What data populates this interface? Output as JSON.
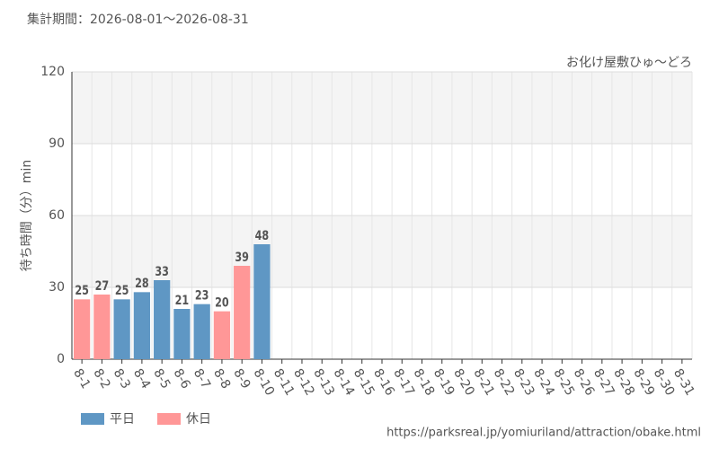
{
  "chart_data": {
    "type": "bar",
    "title": "集計期間：2026-08-01～2026-08-31",
    "subtitle": "お化け屋敷ひゅ～どろ",
    "y_label": "待ち時間（分）min",
    "source": "https://parksreal.jp/yomiuriland/attraction/obake.html",
    "categories": [
      "8-1",
      "8-2",
      "8-3",
      "8-4",
      "8-5",
      "8-6",
      "8-7",
      "8-8",
      "8-9",
      "8-10",
      "8-11",
      "8-12",
      "8-13",
      "8-14",
      "8-15",
      "8-16",
      "8-17",
      "8-18",
      "8-19",
      "8-20",
      "8-21",
      "8-22",
      "8-23",
      "8-24",
      "8-25",
      "8-26",
      "8-27",
      "8-28",
      "8-29",
      "8-30",
      "8-31"
    ],
    "category_label_colors": [
      "#f08080",
      "#f08080",
      "#333333",
      "#333333",
      "#333333",
      "#333333",
      "#333333",
      "#f08080",
      "#f08080",
      "#333333",
      "#f08080",
      "#333333",
      "#333333",
      "#333333",
      "#f08080",
      "#f08080",
      "#333333",
      "#333333",
      "#333333",
      "#333333",
      "#333333",
      "#f08080",
      "#f08080",
      "#333333",
      "#333333",
      "#333333",
      "#333333",
      "#333333",
      "#f08080",
      "#f08080",
      "#333333"
    ],
    "series": [
      {
        "name": "平日",
        "color": "#5f97c4",
        "label_color": "#4a7fb0",
        "values": [
          null,
          null,
          25,
          28,
          33,
          21,
          23,
          null,
          null,
          48,
          null,
          null,
          null,
          null,
          null,
          null,
          null,
          null,
          null,
          null,
          null,
          null,
          null,
          null,
          null,
          null,
          null,
          null,
          null,
          null,
          null
        ]
      },
      {
        "name": "休日",
        "color": "#ff9797",
        "label_color": "#f08080",
        "values": [
          25,
          27,
          null,
          null,
          null,
          null,
          null,
          20,
          39,
          null,
          null,
          null,
          null,
          null,
          null,
          null,
          null,
          null,
          null,
          null,
          null,
          null,
          null,
          null,
          null,
          null,
          null,
          null,
          null,
          null,
          null
        ]
      }
    ],
    "ylim": [
      0,
      120
    ],
    "yticks": [
      0,
      30,
      60,
      90,
      120
    ],
    "grid": true
  }
}
